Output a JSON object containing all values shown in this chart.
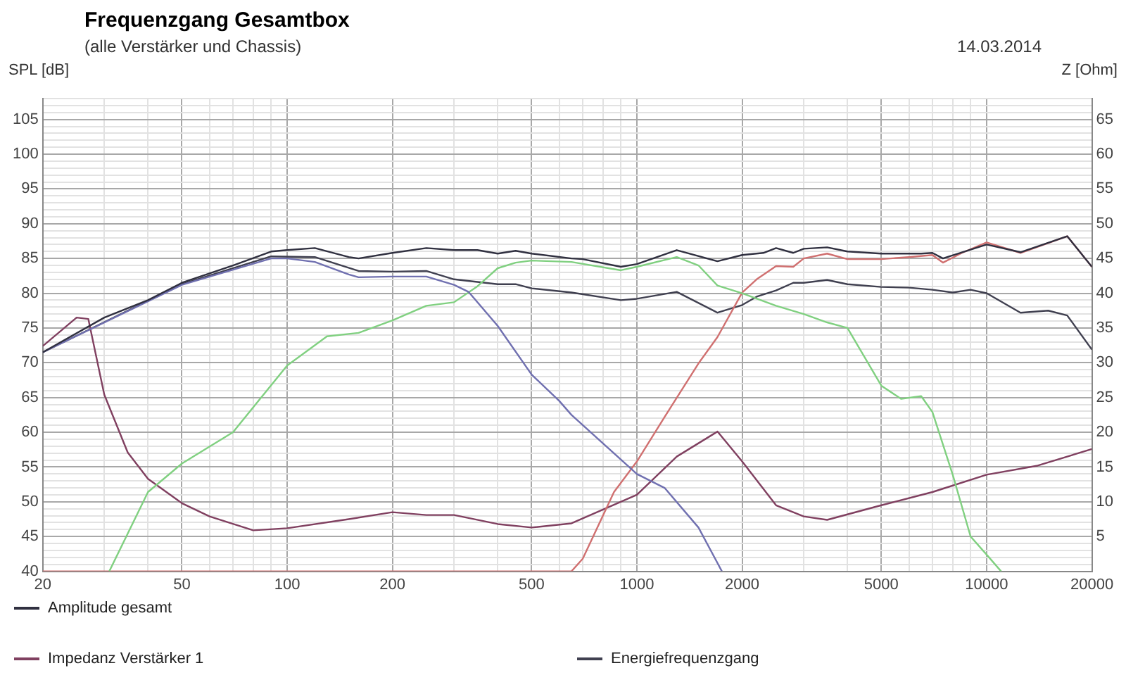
{
  "chart_data": {
    "type": "line",
    "title": "Frequenzgang Gesamtbox",
    "subtitle": "(alle Verstärker und Chassis)",
    "annotations": [
      "14.03.2014"
    ],
    "ylabel": "SPL [dB]",
    "y2label": "Z [Ohm]",
    "log": "x",
    "grid": true,
    "legend": "bottom",
    "marker": "none",
    "line_style": "solid",
    "xlim": [
      20,
      20000
    ],
    "xticks": [
      20,
      {
        "value": 30,
        "label": null
      },
      {
        "value": 40,
        "label": null
      },
      50,
      {
        "value": 60,
        "label": null
      },
      {
        "value": 70,
        "label": null
      },
      {
        "value": 80,
        "label": null
      },
      {
        "value": 90,
        "label": null
      },
      100,
      200,
      {
        "value": 300,
        "label": null
      },
      {
        "value": 400,
        "label": null
      },
      500,
      {
        "value": 600,
        "label": null
      },
      {
        "value": 700,
        "label": null
      },
      {
        "value": 800,
        "label": null
      },
      {
        "value": 900,
        "label": null
      },
      1000,
      2000,
      {
        "value": 3000,
        "label": null
      },
      {
        "value": 4000,
        "label": null
      },
      5000,
      {
        "value": 6000,
        "label": null
      },
      {
        "value": 7000,
        "label": null
      },
      {
        "value": 8000,
        "label": null
      },
      {
        "value": 9000,
        "label": null
      },
      10000,
      20000
    ],
    "ylim": [
      40,
      108
    ],
    "yticks": [
      40,
      {
        "value": 41,
        "label": null
      },
      {
        "value": 42,
        "label": null
      },
      {
        "value": 43,
        "label": null
      },
      {
        "value": 44,
        "label": null
      },
      45,
      {
        "value": 46,
        "label": null
      },
      {
        "value": 47,
        "label": null
      },
      {
        "value": 48,
        "label": null
      },
      {
        "value": 49,
        "label": null
      },
      50,
      {
        "value": 51,
        "label": null
      },
      {
        "value": 52,
        "label": null
      },
      {
        "value": 53,
        "label": null
      },
      {
        "value": 54,
        "label": null
      },
      55,
      {
        "value": 56,
        "label": null
      },
      {
        "value": 57,
        "label": null
      },
      {
        "value": 58,
        "label": null
      },
      {
        "value": 59,
        "label": null
      },
      60,
      {
        "value": 61,
        "label": null
      },
      {
        "value": 62,
        "label": null
      },
      {
        "value": 63,
        "label": null
      },
      {
        "value": 64,
        "label": null
      },
      65,
      {
        "value": 66,
        "label": null
      },
      {
        "value": 67,
        "label": null
      },
      {
        "value": 68,
        "label": null
      },
      {
        "value": 69,
        "label": null
      },
      70,
      {
        "value": 71,
        "label": null
      },
      {
        "value": 72,
        "label": null
      },
      {
        "value": 73,
        "label": null
      },
      {
        "value": 74,
        "label": null
      },
      75,
      {
        "value": 76,
        "label": null
      },
      {
        "value": 77,
        "label": null
      },
      {
        "value": 78,
        "label": null
      },
      {
        "value": 79,
        "label": null
      },
      80,
      {
        "value": 81,
        "label": null
      },
      {
        "value": 82,
        "label": null
      },
      {
        "value": 83,
        "label": null
      },
      {
        "value": 84,
        "label": null
      },
      85,
      {
        "value": 86,
        "label": null
      },
      {
        "value": 87,
        "label": null
      },
      {
        "value": 88,
        "label": null
      },
      {
        "value": 89,
        "label": null
      },
      90,
      {
        "value": 91,
        "label": null
      },
      {
        "value": 92,
        "label": null
      },
      {
        "value": 93,
        "label": null
      },
      {
        "value": 94,
        "label": null
      },
      95,
      {
        "value": 96,
        "label": null
      },
      {
        "value": 97,
        "label": null
      },
      {
        "value": 98,
        "label": null
      },
      {
        "value": 99,
        "label": null
      },
      100,
      {
        "value": 101,
        "label": null
      },
      {
        "value": 102,
        "label": null
      },
      {
        "value": 103,
        "label": null
      },
      {
        "value": 104,
        "label": null
      },
      105,
      {
        "value": 106,
        "label": null
      },
      {
        "value": 107,
        "label": null
      },
      {
        "value": 108,
        "label": null
      }
    ],
    "y2lim": [
      0,
      68
    ],
    "y2ticks": [
      5,
      10,
      15,
      20,
      25,
      30,
      35,
      40,
      45,
      50,
      55,
      60,
      65
    ],
    "series": [
      {
        "name": "Amplitude gesamt",
        "color": "#303040",
        "x": [
          20,
          30,
          40,
          50,
          70,
          90,
          100,
          120,
          150,
          160,
          200,
          250,
          300,
          350,
          400,
          450,
          500,
          650,
          700,
          900,
          1000,
          1300,
          1700,
          2000,
          2300,
          2500,
          2800,
          3000,
          3500,
          4000,
          5000,
          6500,
          7000,
          7500,
          10000,
          12500,
          17000,
          20000
        ],
        "values": [
          71.5,
          76.5,
          79,
          81.5,
          84,
          86,
          86.2,
          86.5,
          85.2,
          85,
          85.8,
          86.5,
          86.2,
          86.2,
          85.7,
          86.1,
          85.7,
          85,
          84.9,
          83.8,
          84.2,
          86.2,
          84.6,
          85.5,
          85.8,
          86.5,
          85.8,
          86.4,
          86.6,
          86,
          85.7,
          85.7,
          85.8,
          85,
          87,
          85.9,
          88.2,
          83.8
        ]
      },
      {
        "color": "#7070b0",
        "x": [
          20,
          50,
          90,
          100,
          120,
          150,
          160,
          200,
          250,
          300,
          330,
          400,
          500,
          600,
          650,
          1000,
          1200,
          1500,
          1750
        ],
        "values": [
          71.5,
          81.2,
          85,
          85,
          84.5,
          82.7,
          82.3,
          82.4,
          82.4,
          81.2,
          80.2,
          75.3,
          68.3,
          64.5,
          62.5,
          54,
          52,
          46.3,
          40
        ]
      },
      {
        "color": "#80d080",
        "x": [
          31,
          40,
          50,
          70,
          100,
          130,
          160,
          200,
          250,
          300,
          350,
          400,
          450,
          500,
          650,
          900,
          1000,
          1300,
          1500,
          1700,
          2000,
          2500,
          3000,
          3500,
          4000,
          5000,
          5700,
          6500,
          7000,
          8000,
          9000,
          10000,
          11000
        ],
        "values": [
          40,
          51.4,
          55.5,
          60,
          69.6,
          73.8,
          74.3,
          76.1,
          78.2,
          78.7,
          81,
          83.6,
          84.4,
          84.7,
          84.5,
          83.3,
          83.8,
          85.2,
          84,
          81.1,
          80,
          78.2,
          77,
          75.8,
          75,
          66.7,
          64.8,
          65.2,
          62.9,
          53.9,
          45,
          42.4,
          40
        ]
      },
      {
        "color": "#d07070",
        "x": [
          20,
          650,
          700,
          860,
          1000,
          1200,
          1500,
          1700,
          2000,
          2200,
          2500,
          2800,
          3000,
          3500,
          4000,
          5000,
          6000,
          7000,
          7500,
          8500,
          10000,
          12500,
          17000,
          20000
        ],
        "values": [
          40,
          40,
          41.8,
          51.4,
          55.8,
          62.2,
          69.9,
          73.7,
          80.1,
          82,
          83.9,
          83.8,
          85,
          85.7,
          84.9,
          84.9,
          85.2,
          85.5,
          84.4,
          85.8,
          87.3,
          85.8,
          88.2,
          83.8
        ]
      },
      {
        "name": "Impedanz Verstärker 1",
        "color": "#804060",
        "axis": "y2",
        "x": [
          20,
          25,
          27,
          30,
          35,
          40,
          50,
          60,
          80,
          100,
          150,
          200,
          250,
          300,
          400,
          500,
          650,
          1000,
          1300,
          1700,
          2000,
          2500,
          3000,
          3500,
          5000,
          7000,
          10000,
          14000,
          20000
        ],
        "values": [
          32.4,
          36.5,
          36.3,
          25.4,
          17.1,
          13.3,
          9.8,
          7.9,
          5.9,
          6.2,
          7.5,
          8.5,
          8.1,
          8.1,
          6.8,
          6.3,
          6.9,
          11,
          16.5,
          20.1,
          15.8,
          9.5,
          7.9,
          7.4,
          9.5,
          11.4,
          13.9,
          15.2,
          17.6
        ]
      },
      {
        "name": "Energiefrequenzgang",
        "color": "#404050",
        "x": [
          20,
          50,
          90,
          120,
          160,
          200,
          250,
          300,
          400,
          450,
          500,
          650,
          900,
          1000,
          1300,
          1700,
          2000,
          2200,
          2500,
          2800,
          3000,
          3500,
          4000,
          5000,
          6000,
          7000,
          8000,
          9000,
          10000,
          12500,
          15000,
          17000,
          20000
        ],
        "values": [
          71.5,
          81.3,
          85.3,
          85.2,
          83.2,
          83.1,
          83.2,
          82,
          81.3,
          81.3,
          80.7,
          80.1,
          79,
          79.2,
          80.2,
          77.2,
          78.3,
          79.5,
          80.4,
          81.5,
          81.5,
          81.9,
          81.3,
          80.9,
          80.8,
          80.5,
          80.1,
          80.5,
          80,
          77.2,
          77.5,
          76.8,
          71.9
        ]
      }
    ]
  }
}
